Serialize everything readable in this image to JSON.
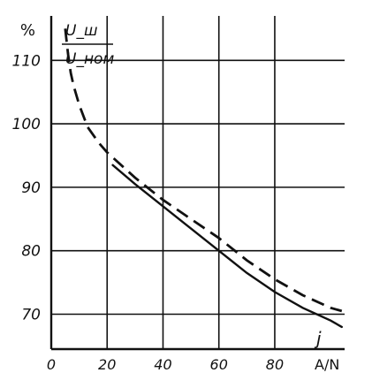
{
  "chart_data": {
    "type": "line",
    "unit_label": "%",
    "ylabel_numerator": "U_ш",
    "ylabel_denominator": "U_ном",
    "xlabel": "A/N",
    "corner_label": "j",
    "xlim": [
      0,
      105
    ],
    "ylim": [
      64.5,
      117
    ],
    "x_ticks": [
      0,
      20,
      40,
      60,
      80
    ],
    "x_tick_labels": [
      "0",
      "20",
      "40",
      "60",
      "80"
    ],
    "y_ticks": [
      70,
      80,
      90,
      100,
      110
    ],
    "y_tick_labels": [
      "70",
      "80",
      "90",
      "100",
      "110"
    ],
    "grid": true,
    "series": [
      {
        "style": "dashed",
        "x": [
          5,
          6,
          7,
          8,
          10,
          13,
          17,
          20,
          30,
          40,
          50,
          60,
          70,
          80,
          90,
          100,
          104
        ],
        "y": [
          115,
          111,
          108,
          106,
          103,
          99.5,
          97,
          95.5,
          91.5,
          88,
          85,
          82,
          78.5,
          75.5,
          73,
          71,
          70.5
        ]
      },
      {
        "style": "solid",
        "x": [
          22,
          30,
          40,
          50,
          60,
          70,
          80,
          90,
          100,
          104
        ],
        "y": [
          93.5,
          90.5,
          87,
          83.5,
          80,
          76.5,
          73.5,
          71,
          69,
          68
        ]
      }
    ]
  }
}
